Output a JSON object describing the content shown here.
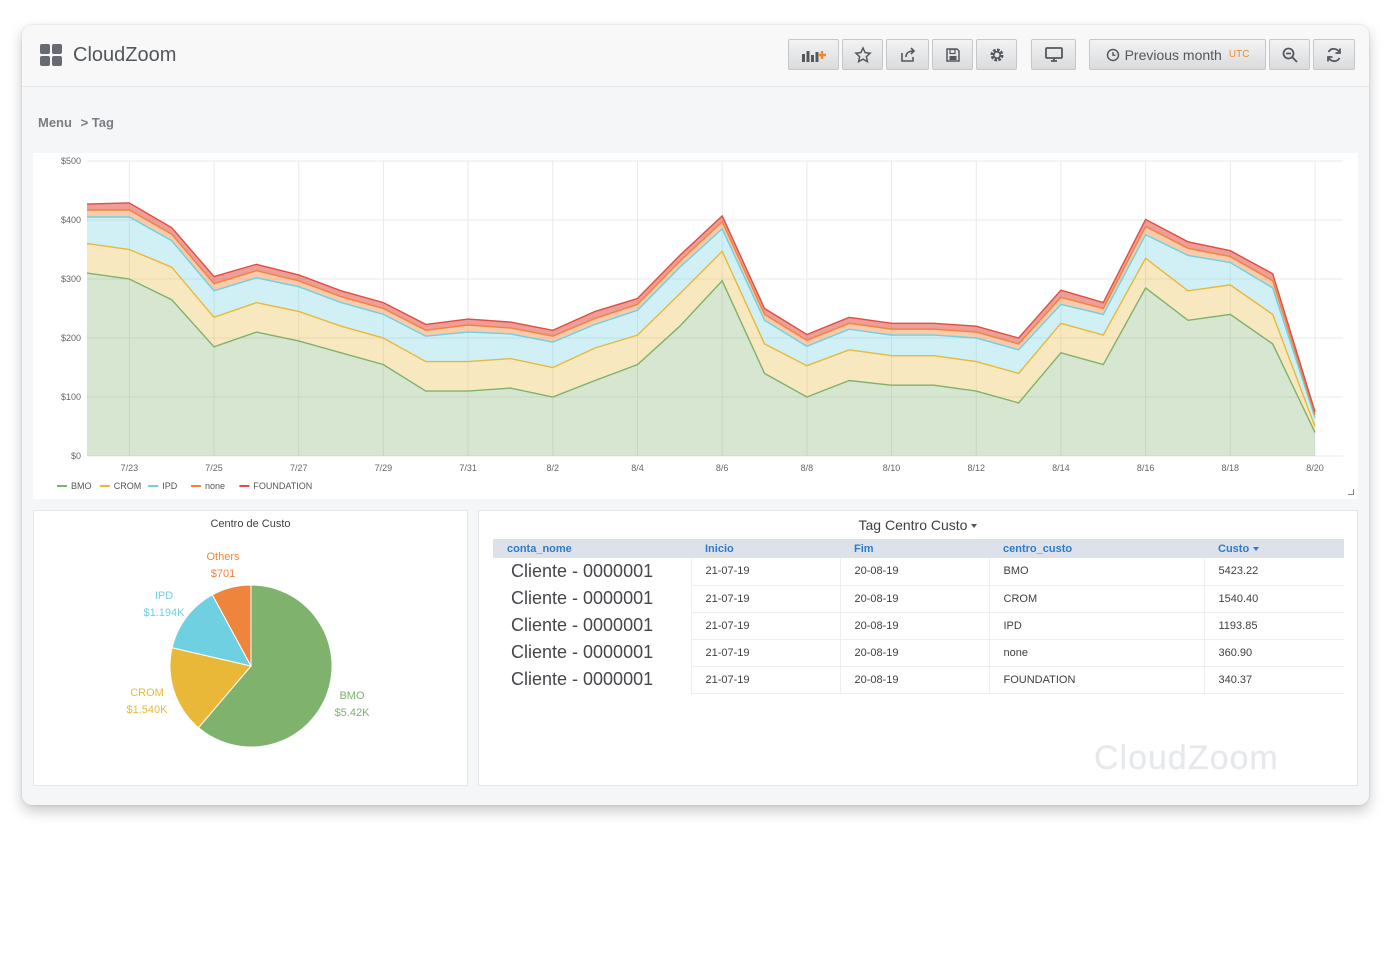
{
  "app": {
    "title": "CloudZoom",
    "watermark": "CloudZoom"
  },
  "toolbar": {
    "time_range_label": "Previous month",
    "timezone_label": "UTC"
  },
  "breadcrumb": {
    "root": "Menu",
    "current": "> Tag"
  },
  "chart_data": [
    {
      "type": "area",
      "stacked": true,
      "x": [
        "7/22",
        "7/23",
        "7/24",
        "7/25",
        "7/26",
        "7/27",
        "7/28",
        "7/29",
        "7/30",
        "7/31",
        "8/1",
        "8/2",
        "8/3",
        "8/4",
        "8/5",
        "8/6",
        "8/7",
        "8/8",
        "8/9",
        "8/10",
        "8/11",
        "8/12",
        "8/13",
        "8/14",
        "8/15",
        "8/16",
        "8/17",
        "8/18",
        "8/19",
        "8/20"
      ],
      "x_tick_labels": [
        "7/23",
        "7/25",
        "7/27",
        "7/29",
        "7/31",
        "8/2",
        "8/4",
        "8/6",
        "8/8",
        "8/10",
        "8/12",
        "8/14",
        "8/16",
        "8/18",
        "8/20"
      ],
      "y_tick_labels": [
        "$0",
        "$100",
        "$200",
        "$300",
        "$400",
        "$500"
      ],
      "ylim": [
        0,
        500
      ],
      "grid": true,
      "legend_position": "bottom-left",
      "series": [
        {
          "name": "BMO",
          "color": "#7eb26d",
          "values": [
            310,
            300,
            265,
            185,
            210,
            195,
            175,
            155,
            110,
            110,
            115,
            100,
            128,
            155,
            220,
            297,
            140,
            100,
            128,
            120,
            120,
            110,
            90,
            175,
            155,
            285,
            230,
            240,
            190,
            40
          ]
        },
        {
          "name": "CROM",
          "color": "#eab839",
          "values": [
            50,
            50,
            55,
            50,
            50,
            50,
            45,
            45,
            50,
            50,
            50,
            50,
            55,
            50,
            55,
            50,
            50,
            53,
            52,
            50,
            50,
            50,
            50,
            50,
            50,
            50,
            50,
            50,
            50,
            10
          ]
        },
        {
          "name": "IPD",
          "color": "#6ed0e0",
          "values": [
            45,
            55,
            45,
            45,
            42,
            42,
            40,
            40,
            43,
            50,
            42,
            43,
            40,
            42,
            45,
            38,
            40,
            33,
            35,
            35,
            35,
            40,
            40,
            32,
            35,
            40,
            60,
            38,
            45,
            15
          ]
        },
        {
          "name": "none",
          "color": "#ef843c",
          "values": [
            12,
            12,
            11,
            12,
            12,
            10,
            10,
            10,
            10,
            12,
            10,
            10,
            10,
            10,
            10,
            12,
            10,
            10,
            10,
            10,
            10,
            10,
            10,
            12,
            10,
            14,
            12,
            10,
            12,
            5
          ]
        },
        {
          "name": "FOUNDATION",
          "color": "#e24d42",
          "values": [
            10,
            12,
            11,
            12,
            11,
            10,
            10,
            10,
            10,
            10,
            10,
            10,
            12,
            10,
            10,
            10,
            10,
            10,
            10,
            10,
            10,
            10,
            10,
            12,
            10,
            12,
            11,
            10,
            12,
            5
          ]
        }
      ]
    },
    {
      "type": "pie",
      "title": "Centro de Custo",
      "slices": [
        {
          "name": "BMO",
          "value": 5423.22,
          "label": "$5.42K",
          "color": "#7eb26d"
        },
        {
          "name": "CROM",
          "value": 1540.4,
          "label": "$1.540K",
          "color": "#eab839"
        },
        {
          "name": "IPD",
          "value": 1193.85,
          "label": "$1.194K",
          "color": "#6ed0e0"
        },
        {
          "name": "Others",
          "value": 701,
          "label": "$701",
          "color": "#ef843c"
        }
      ]
    }
  ],
  "table": {
    "title": "Tag Centro Custo",
    "columns": [
      "conta_nome",
      "Inicio",
      "Fim",
      "centro_custo",
      "Custo"
    ],
    "rows": [
      [
        "Cliente - 0000001",
        "21-07-19",
        "20-08-19",
        "BMO",
        "5423.22"
      ],
      [
        "Cliente - 0000001",
        "21-07-19",
        "20-08-19",
        "CROM",
        "1540.40"
      ],
      [
        "Cliente - 0000001",
        "21-07-19",
        "20-08-19",
        "IPD",
        "1193.85"
      ],
      [
        "Cliente - 0000001",
        "21-07-19",
        "20-08-19",
        "none",
        "360.90"
      ],
      [
        "Cliente - 0000001",
        "21-07-19",
        "20-08-19",
        "FOUNDATION",
        "340.37"
      ]
    ]
  }
}
